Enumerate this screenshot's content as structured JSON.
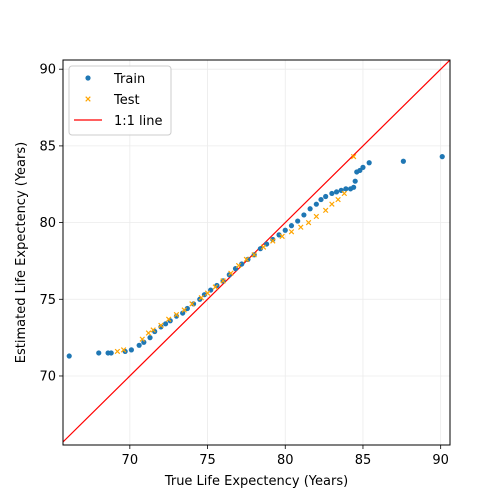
{
  "chart_data": {
    "type": "scatter",
    "title": "",
    "xlabel": "True Life Expectency (Years)",
    "ylabel": "Estimated Life Expectency (Years)",
    "xlim": [
      65.7,
      90.6
    ],
    "ylim": [
      65.5,
      90.6
    ],
    "xticks": [
      70,
      75,
      80,
      85,
      90
    ],
    "yticks": [
      70,
      75,
      80,
      85,
      90
    ],
    "grid": true,
    "legend_position": "upper-left",
    "reference_line": {
      "name": "1:1 line",
      "color": "#ff0000"
    },
    "series": [
      {
        "name": "Train",
        "marker": "circle",
        "color": "#1f77b4",
        "points": [
          [
            66.1,
            71.3
          ],
          [
            68.0,
            71.5
          ],
          [
            68.6,
            71.5
          ],
          [
            68.8,
            71.5
          ],
          [
            69.7,
            71.6
          ],
          [
            70.1,
            71.7
          ],
          [
            70.6,
            72.0
          ],
          [
            70.9,
            72.2
          ],
          [
            71.3,
            72.5
          ],
          [
            71.6,
            72.9
          ],
          [
            72.0,
            73.2
          ],
          [
            72.3,
            73.4
          ],
          [
            72.6,
            73.6
          ],
          [
            73.0,
            73.9
          ],
          [
            73.4,
            74.1
          ],
          [
            73.7,
            74.4
          ],
          [
            74.1,
            74.7
          ],
          [
            74.5,
            75.0
          ],
          [
            74.8,
            75.3
          ],
          [
            75.2,
            75.6
          ],
          [
            75.6,
            75.9
          ],
          [
            76.0,
            76.2
          ],
          [
            76.4,
            76.6
          ],
          [
            76.8,
            77.0
          ],
          [
            77.2,
            77.3
          ],
          [
            77.6,
            77.6
          ],
          [
            78.0,
            77.9
          ],
          [
            78.4,
            78.3
          ],
          [
            78.8,
            78.6
          ],
          [
            79.2,
            78.9
          ],
          [
            79.6,
            79.2
          ],
          [
            80.0,
            79.5
          ],
          [
            80.4,
            79.8
          ],
          [
            80.8,
            80.1
          ],
          [
            81.2,
            80.5
          ],
          [
            81.6,
            80.9
          ],
          [
            82.0,
            81.2
          ],
          [
            82.3,
            81.5
          ],
          [
            82.6,
            81.7
          ],
          [
            83.0,
            81.9
          ],
          [
            83.3,
            82.0
          ],
          [
            83.6,
            82.1
          ],
          [
            83.9,
            82.2
          ],
          [
            84.2,
            82.2
          ],
          [
            84.4,
            82.3
          ],
          [
            84.5,
            82.7
          ],
          [
            84.6,
            83.3
          ],
          [
            84.8,
            83.4
          ],
          [
            85.0,
            83.6
          ],
          [
            85.4,
            83.9
          ],
          [
            87.6,
            84.0
          ],
          [
            90.1,
            84.3
          ]
        ]
      },
      {
        "name": "Test",
        "marker": "x",
        "color": "#ffa500",
        "points": [
          [
            69.2,
            71.6
          ],
          [
            69.6,
            71.7
          ],
          [
            70.8,
            72.4
          ],
          [
            71.2,
            72.8
          ],
          [
            71.5,
            73.0
          ],
          [
            72.0,
            73.3
          ],
          [
            72.5,
            73.7
          ],
          [
            73.0,
            74.0
          ],
          [
            73.5,
            74.3
          ],
          [
            74.0,
            74.7
          ],
          [
            74.6,
            75.1
          ],
          [
            75.0,
            75.4
          ],
          [
            75.5,
            75.8
          ],
          [
            76.0,
            76.2
          ],
          [
            76.5,
            76.7
          ],
          [
            77.0,
            77.2
          ],
          [
            77.5,
            77.6
          ],
          [
            78.0,
            77.9
          ],
          [
            78.6,
            78.4
          ],
          [
            79.2,
            78.8
          ],
          [
            79.8,
            79.1
          ],
          [
            80.4,
            79.4
          ],
          [
            81.0,
            79.7
          ],
          [
            81.5,
            80.0
          ],
          [
            82.0,
            80.4
          ],
          [
            82.6,
            80.8
          ],
          [
            83.0,
            81.2
          ],
          [
            83.4,
            81.5
          ],
          [
            83.8,
            81.9
          ],
          [
            84.4,
            84.3
          ]
        ]
      }
    ]
  }
}
